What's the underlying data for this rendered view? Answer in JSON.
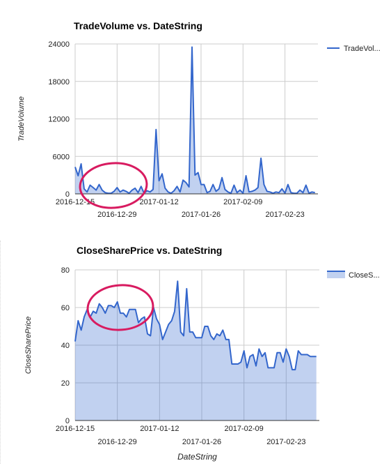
{
  "colors": {
    "line": "#3366cc",
    "area": "#3366cc",
    "grid": "#cccccc",
    "axis": "#333333",
    "circle": "#d81b60"
  },
  "chart_data": [
    {
      "type": "area",
      "title": "TradeVolume vs. DateString",
      "xlabel": "",
      "ylabel": "TradeVolume",
      "ylim": [
        0,
        24000
      ],
      "yticks": [
        "0",
        "6000",
        "12000",
        "18000",
        "24000"
      ],
      "xticks": [
        "2016-12-15",
        "2016-12-29",
        "2017-01-12",
        "2017-01-26",
        "2017-02-09",
        "2017-02-23"
      ],
      "xlim": [
        "2016-12-15",
        "2017-03-06"
      ],
      "legend": "right",
      "grid": true,
      "annotation": "circle",
      "series": [
        {
          "name": "TradeVol...",
          "x": [
            "2016-12-15",
            "2016-12-16",
            "2016-12-17",
            "2016-12-18",
            "2016-12-19",
            "2016-12-20",
            "2016-12-21",
            "2016-12-22",
            "2016-12-23",
            "2016-12-24",
            "2016-12-25",
            "2016-12-26",
            "2016-12-27",
            "2016-12-28",
            "2016-12-29",
            "2016-12-30",
            "2016-12-31",
            "2017-01-01",
            "2017-01-02",
            "2017-01-03",
            "2017-01-04",
            "2017-01-05",
            "2017-01-06",
            "2017-01-07",
            "2017-01-08",
            "2017-01-09",
            "2017-01-10",
            "2017-01-11",
            "2017-01-12",
            "2017-01-13",
            "2017-01-14",
            "2017-01-15",
            "2017-01-16",
            "2017-01-17",
            "2017-01-18",
            "2017-01-19",
            "2017-01-20",
            "2017-01-21",
            "2017-01-22",
            "2017-01-23",
            "2017-01-24",
            "2017-01-25",
            "2017-01-26",
            "2017-01-27",
            "2017-01-28",
            "2017-01-29",
            "2017-01-30",
            "2017-01-31",
            "2017-02-01",
            "2017-02-02",
            "2017-02-03",
            "2017-02-04",
            "2017-02-05",
            "2017-02-06",
            "2017-02-07",
            "2017-02-08",
            "2017-02-09",
            "2017-02-10",
            "2017-02-11",
            "2017-02-12",
            "2017-02-13",
            "2017-02-14",
            "2017-02-15",
            "2017-02-16",
            "2017-02-17",
            "2017-02-18",
            "2017-02-19",
            "2017-02-20",
            "2017-02-21",
            "2017-02-22",
            "2017-02-23",
            "2017-02-24",
            "2017-02-25",
            "2017-02-26",
            "2017-02-27",
            "2017-02-28",
            "2017-03-01",
            "2017-03-02",
            "2017-03-03",
            "2017-03-04",
            "2017-03-05"
          ],
          "values": [
            4300,
            2900,
            4800,
            800,
            300,
            1400,
            1000,
            600,
            1500,
            600,
            200,
            100,
            100,
            400,
            1000,
            300,
            600,
            400,
            100,
            600,
            900,
            200,
            1200,
            100,
            500,
            300,
            700,
            10300,
            2100,
            3200,
            900,
            300,
            100,
            500,
            1200,
            300,
            2200,
            1800,
            1100,
            23500,
            3000,
            3400,
            1500,
            1500,
            200,
            400,
            1500,
            400,
            800,
            2600,
            700,
            300,
            100,
            1400,
            200,
            600,
            100,
            2900,
            300,
            400,
            600,
            1000,
            5700,
            1500,
            400,
            300,
            100,
            300,
            200,
            800,
            100,
            1500,
            200,
            100,
            100,
            600,
            200,
            1400,
            100,
            300,
            200
          ]
        }
      ]
    },
    {
      "type": "area",
      "title": "CloseSharePrice vs. DateString",
      "xlabel": "DateString",
      "ylabel": "CloseSharePrice",
      "ylim": [
        0,
        80
      ],
      "yticks": [
        "0",
        "20",
        "40",
        "60",
        "80"
      ],
      "xticks": [
        "2016-12-15",
        "2016-12-29",
        "2017-01-12",
        "2017-01-26",
        "2017-02-09",
        "2017-02-23"
      ],
      "xlim": [
        "2016-12-15",
        "2017-03-06"
      ],
      "legend": "right",
      "grid": true,
      "annotation": "circle",
      "series": [
        {
          "name": "CloseS...",
          "x": [
            "2016-12-15",
            "2016-12-16",
            "2016-12-17",
            "2016-12-18",
            "2016-12-19",
            "2016-12-20",
            "2016-12-21",
            "2016-12-22",
            "2016-12-23",
            "2016-12-24",
            "2016-12-25",
            "2016-12-26",
            "2016-12-27",
            "2016-12-28",
            "2016-12-29",
            "2016-12-30",
            "2016-12-31",
            "2017-01-01",
            "2017-01-02",
            "2017-01-03",
            "2017-01-04",
            "2017-01-05",
            "2017-01-06",
            "2017-01-07",
            "2017-01-08",
            "2017-01-09",
            "2017-01-10",
            "2017-01-11",
            "2017-01-12",
            "2017-01-13",
            "2017-01-14",
            "2017-01-15",
            "2017-01-16",
            "2017-01-17",
            "2017-01-18",
            "2017-01-19",
            "2017-01-20",
            "2017-01-21",
            "2017-01-22",
            "2017-01-23",
            "2017-01-24",
            "2017-01-25",
            "2017-01-26",
            "2017-01-27",
            "2017-01-28",
            "2017-01-29",
            "2017-01-30",
            "2017-01-31",
            "2017-02-01",
            "2017-02-02",
            "2017-02-03",
            "2017-02-04",
            "2017-02-05",
            "2017-02-06",
            "2017-02-07",
            "2017-02-08",
            "2017-02-09",
            "2017-02-10",
            "2017-02-11",
            "2017-02-12",
            "2017-02-13",
            "2017-02-14",
            "2017-02-15",
            "2017-02-16",
            "2017-02-17",
            "2017-02-18",
            "2017-02-19",
            "2017-02-20",
            "2017-02-21",
            "2017-02-22",
            "2017-02-23",
            "2017-02-24",
            "2017-02-25",
            "2017-02-26",
            "2017-02-27",
            "2017-02-28",
            "2017-03-01",
            "2017-03-02",
            "2017-03-03",
            "2017-03-04",
            "2017-03-05"
          ],
          "values": [
            42,
            53,
            48,
            55,
            59,
            55,
            58,
            57,
            62,
            60,
            57,
            61,
            61,
            60,
            63,
            57,
            57,
            55,
            59,
            59,
            59,
            52,
            54,
            55,
            46,
            45,
            60,
            54,
            51,
            43,
            47,
            51,
            53,
            58,
            74,
            47,
            45,
            70,
            47,
            47,
            44,
            44,
            44,
            50,
            50,
            45,
            43,
            46,
            45,
            48,
            43,
            43,
            30,
            30,
            30,
            31,
            37,
            28,
            34,
            35,
            29,
            38,
            34,
            36,
            28,
            28,
            28,
            36,
            36,
            31,
            38,
            34,
            27,
            27,
            37,
            35,
            35,
            35,
            34,
            34,
            34
          ]
        }
      ]
    }
  ]
}
